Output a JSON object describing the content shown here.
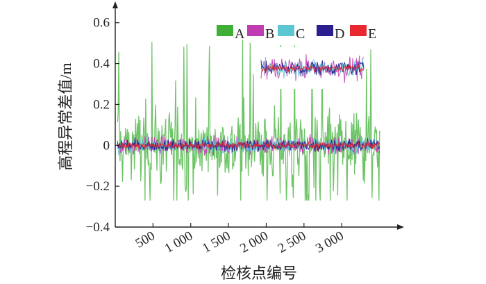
{
  "chart_data": {
    "type": "line",
    "title": "",
    "xlabel": "检核点编号",
    "ylabel": "高程异常差值/m",
    "xlim": [
      0,
      3550
    ],
    "ylim": [
      -0.4,
      0.65
    ],
    "xticks": [
      500,
      1000,
      1500,
      2000,
      2500,
      3000
    ],
    "xtick_labels": [
      "500",
      "1 000",
      "1 500",
      "2 000",
      "2 500",
      "3 000"
    ],
    "yticks": [
      -0.4,
      -0.2,
      0,
      0.2,
      0.4,
      0.6
    ],
    "ytick_labels": [
      "−0.4",
      "−0.2",
      "0",
      "0.2",
      "0.4",
      "0.6"
    ],
    "grid": false,
    "legend_position": "top-right",
    "inset": "zoomed view of series B–E near the top-right",
    "series": [
      {
        "name": "A",
        "color": "#3fb035",
        "approx_range": [
          -0.27,
          0.52
        ],
        "typical_abs": 0.12
      },
      {
        "name": "B",
        "color": "#c03cb0",
        "approx_range": [
          -0.07,
          0.08
        ],
        "typical_abs": 0.03
      },
      {
        "name": "C",
        "color": "#5cc6d2",
        "approx_range": [
          -0.05,
          0.06
        ],
        "typical_abs": 0.025
      },
      {
        "name": "D",
        "color": "#2a1f8f",
        "approx_range": [
          -0.05,
          0.05
        ],
        "typical_abs": 0.02
      },
      {
        "name": "E",
        "color": "#e8282e",
        "approx_range": [
          -0.025,
          0.025
        ],
        "typical_abs": 0.01
      }
    ]
  }
}
